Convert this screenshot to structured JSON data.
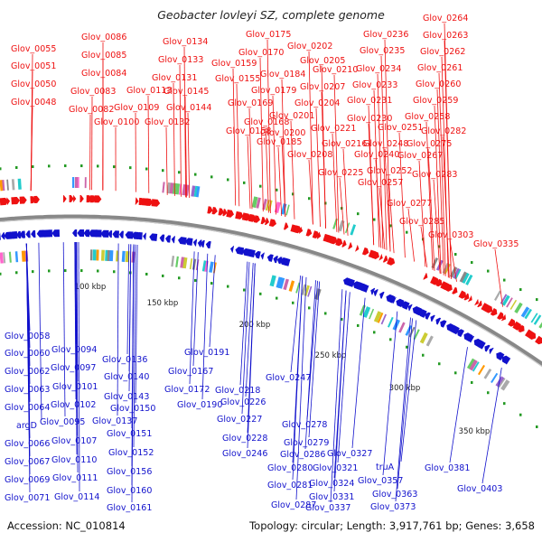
{
  "title": "Geobacter lovleyi SZ, complete genome",
  "footer": {
    "accession": "Accession: NC_010814",
    "stats": "Topology: circular; Length: 3,917,761 bp; Genes: 3,658"
  },
  "colors": {
    "forward": "#ee1111",
    "reverse": "#1111cc",
    "backbone": "#888888",
    "tick": "#229922"
  },
  "ticks": [
    "100 kbp",
    "150 kbp",
    "200 kbp",
    "250 kbp",
    "300 kbp",
    "350 kbp"
  ],
  "forward_labels": [
    "Glov_0055",
    "Glov_0051",
    "Glov_0050",
    "Glov_0048",
    "Glov_0086",
    "Glov_0085",
    "Glov_0084",
    "Glov_0083",
    "Glov_0082",
    "Glov_0109",
    "Glov_0100",
    "Glov_0134",
    "Glov_0133",
    "Glov_0131",
    "Glov_0113",
    "Glov_0145",
    "Glov_0144",
    "Glov_0132",
    "Glov_0159",
    "Glov_0155",
    "Glov_0175",
    "Glov_0170",
    "Glov_0169",
    "Glov_0168",
    "Glov_0158",
    "Glov_0184",
    "Glov_0179",
    "Glov_0185",
    "Glov_0202",
    "Glov_0205",
    "Glov_0210",
    "Glov_0207",
    "Glov_0204",
    "Glov_0201",
    "Glov_0200",
    "Glov_0208",
    "Glov_0236",
    "Glov_0235",
    "Glov_0234",
    "Glov_0233",
    "Glov_0231",
    "Glov_0230",
    "Glov_0221",
    "Glov_0216",
    "Glov_0264",
    "Glov_0263",
    "Glov_0262",
    "Glov_0261",
    "Glov_0260",
    "Glov_0259",
    "Glov_0258",
    "Glov_0251",
    "Glov_0248",
    "Glov_0240",
    "Glov_0225",
    "Glov_0252",
    "Glov_0257",
    "Glov_0282",
    "Glov_0275",
    "Glov_0267",
    "Glov_0283",
    "Glov_0277",
    "Glov_0285",
    "Glov_0303",
    "Glov_0335"
  ],
  "reverse_labels": [
    "Glov_0058",
    "Glov_0060",
    "Glov_0062",
    "Glov_0063",
    "Glov_0064",
    "argD",
    "Glov_0066",
    "Glov_0067",
    "Glov_0069",
    "Glov_0071",
    "Glov_0094",
    "Glov_0097",
    "Glov_0101",
    "Glov_0102",
    "Glov_0095",
    "Glov_0107",
    "Glov_0110",
    "Glov_0111",
    "Glov_0114",
    "Glov_0136",
    "Glov_0140",
    "Glov_0143",
    "Glov_0150",
    "Glov_0137",
    "Glov_0151",
    "Glov_0152",
    "Glov_0156",
    "Glov_0160",
    "Glov_0161",
    "Glov_0167",
    "Glov_0172",
    "Glov_0190",
    "Glov_0191",
    "Glov_0218",
    "Glov_0226",
    "Glov_0227",
    "Glov_0228",
    "Glov_0246",
    "Glov_0247",
    "Glov_0278",
    "Glov_0279",
    "Glov_0286",
    "Glov_0280",
    "Glov_0281",
    "Glov_0287",
    "Glov_0327",
    "Glov_0321",
    "Glov_0324",
    "Glov_0331",
    "Glov_0337",
    "truA",
    "Glov_0357",
    "Glov_0363",
    "Glov_0373",
    "Glov_0381",
    "Glov_0403"
  ]
}
